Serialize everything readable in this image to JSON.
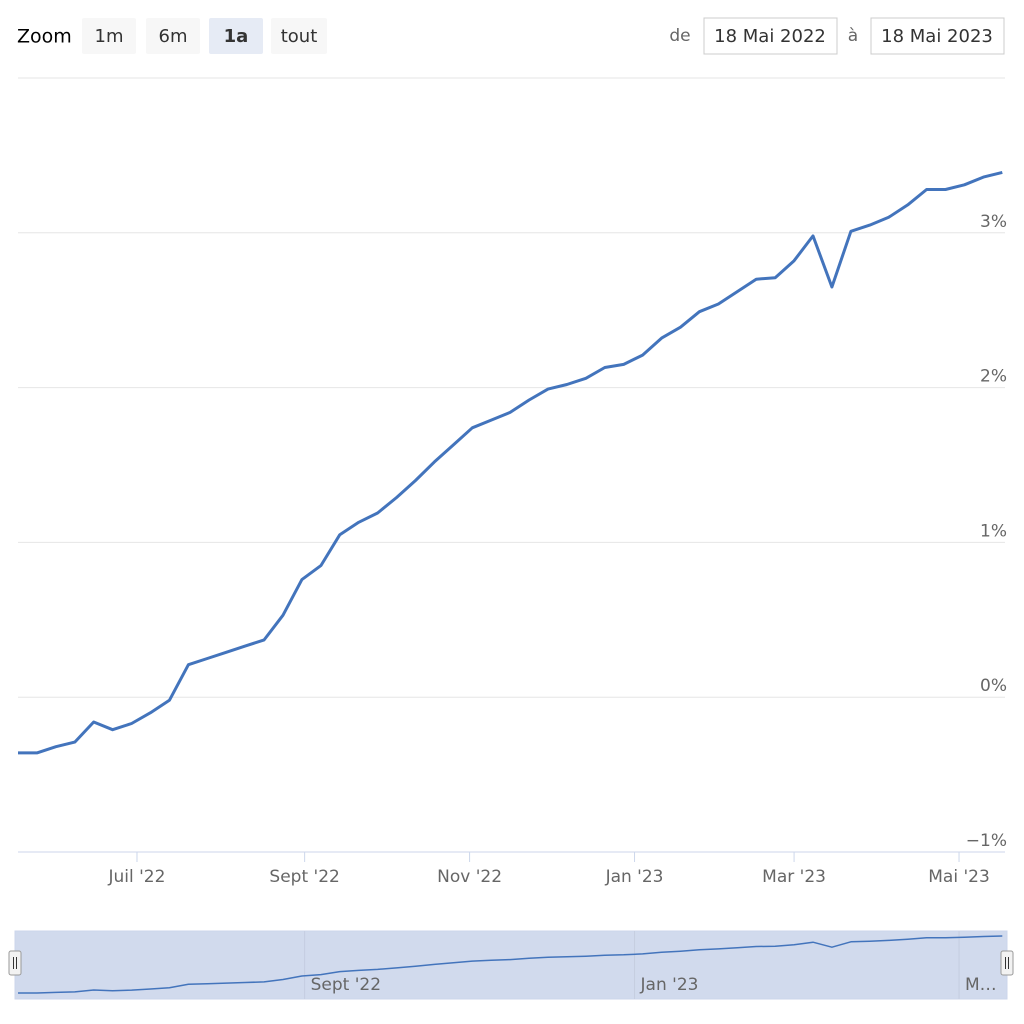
{
  "range_selector": {
    "label": "Zoom",
    "buttons": [
      "1m",
      "6m",
      "1a",
      "tout"
    ],
    "selected": 2,
    "from_label": "de",
    "from": "18 Mai 2022",
    "to_label": "à",
    "to": "18 Mai 2023"
  },
  "chart_data": {
    "type": "line",
    "x": [
      "2022-05-18",
      "2022-05-25",
      "2022-06-01",
      "2022-06-08",
      "2022-06-15",
      "2022-06-22",
      "2022-06-29",
      "2022-07-06",
      "2022-07-13",
      "2022-07-20",
      "2022-07-27",
      "2022-08-03",
      "2022-08-10",
      "2022-08-17",
      "2022-08-24",
      "2022-08-31",
      "2022-09-07",
      "2022-09-14",
      "2022-09-21",
      "2022-09-28",
      "2022-10-05",
      "2022-10-12",
      "2022-10-19",
      "2022-10-26",
      "2022-11-02",
      "2022-11-09",
      "2022-11-16",
      "2022-11-23",
      "2022-11-30",
      "2022-12-07",
      "2022-12-14",
      "2022-12-21",
      "2022-12-28",
      "2023-01-04",
      "2023-01-11",
      "2023-01-18",
      "2023-01-25",
      "2023-02-01",
      "2023-02-08",
      "2023-02-15",
      "2023-02-22",
      "2023-03-01",
      "2023-03-08",
      "2023-03-15",
      "2023-03-22",
      "2023-03-29",
      "2023-04-05",
      "2023-04-12",
      "2023-04-19",
      "2023-04-26",
      "2023-05-03",
      "2023-05-10",
      "2023-05-17"
    ],
    "series": [
      {
        "color": "#4374bc",
        "values": [
          -0.36,
          -0.36,
          -0.32,
          -0.29,
          -0.16,
          -0.21,
          -0.17,
          -0.1,
          -0.02,
          0.21,
          0.25,
          0.29,
          0.33,
          0.37,
          0.53,
          0.76,
          0.85,
          1.05,
          1.13,
          1.19,
          1.29,
          1.4,
          1.52,
          1.63,
          1.74,
          1.79,
          1.84,
          1.92,
          1.99,
          2.02,
          2.06,
          2.13,
          2.15,
          2.21,
          2.32,
          2.39,
          2.49,
          2.54,
          2.62,
          2.7,
          2.71,
          2.82,
          2.98,
          2.65,
          3.01,
          3.05,
          3.1,
          3.18,
          3.28,
          3.28,
          3.31,
          3.36,
          3.39
        ]
      }
    ],
    "xlim": [
      "2022-05-18",
      "2023-05-18"
    ],
    "xticks": [
      {
        "value": "2022-07-01",
        "label": "Juil '22"
      },
      {
        "value": "2022-09-01",
        "label": "Sept '22"
      },
      {
        "value": "2022-11-01",
        "label": "Nov '22"
      },
      {
        "value": "2023-01-01",
        "label": "Jan '23"
      },
      {
        "value": "2023-03-01",
        "label": "Mar '23"
      },
      {
        "value": "2023-05-01",
        "label": "Mai '23"
      }
    ],
    "ylim": [
      -1,
      4
    ],
    "yticks": [
      {
        "value": -1,
        "label": "−1%"
      },
      {
        "value": 0,
        "label": "0%"
      },
      {
        "value": 1,
        "label": "1%"
      },
      {
        "value": 2,
        "label": "2%"
      },
      {
        "value": 3,
        "label": "3%"
      }
    ],
    "grid": true,
    "navigator": {
      "xticks": [
        {
          "value": "2022-09-01",
          "label": "Sept '22"
        },
        {
          "value": "2023-01-01",
          "label": "Jan '23"
        },
        {
          "value": "2023-05-01",
          "label": "M…"
        }
      ]
    }
  }
}
